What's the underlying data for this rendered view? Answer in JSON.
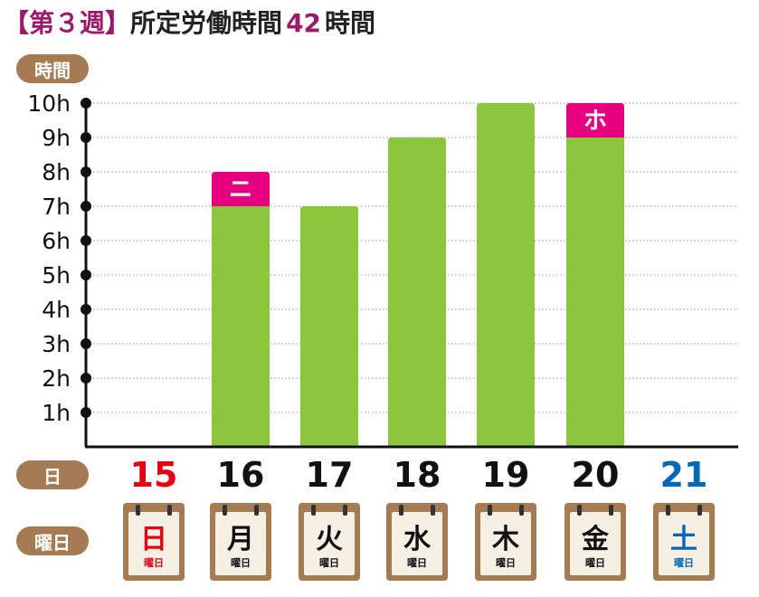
{
  "header": {
    "bracket_open": "【",
    "week": "第３週",
    "bracket_close": "】",
    "label": "所定労働時間",
    "hours": "42",
    "suffix": "時間"
  },
  "labels": {
    "y_axis_pill": "時間",
    "date_pill": "日",
    "weekday_pill": "曜日"
  },
  "colors": {
    "bar": "#8cc63f",
    "extra": "#e4007f",
    "pill": "#a47b52",
    "sunday": "#e60012",
    "saturday": "#0068b7",
    "weekday": "#111111",
    "title_accent": "#9c1a6a"
  },
  "chart_data": {
    "type": "bar",
    "stacked": true,
    "ylim": [
      0,
      10
    ],
    "y_ticks": [
      "1h",
      "2h",
      "3h",
      "4h",
      "5h",
      "6h",
      "7h",
      "8h",
      "9h",
      "10h"
    ],
    "grid": "dotted horizontal",
    "categories": [
      "15",
      "16",
      "17",
      "18",
      "19",
      "20",
      "21"
    ],
    "weekdays": [
      "日",
      "月",
      "火",
      "水",
      "木",
      "金",
      "土"
    ],
    "weekday_suffix": "曜日",
    "series": [
      {
        "values": [
          0,
          7,
          7,
          9,
          10,
          9,
          0
        ]
      },
      {
        "values": [
          0,
          1,
          0,
          0,
          0,
          1,
          0
        ],
        "labels": [
          "",
          "ニ",
          "",
          "",
          "",
          "ホ",
          ""
        ]
      }
    ]
  }
}
